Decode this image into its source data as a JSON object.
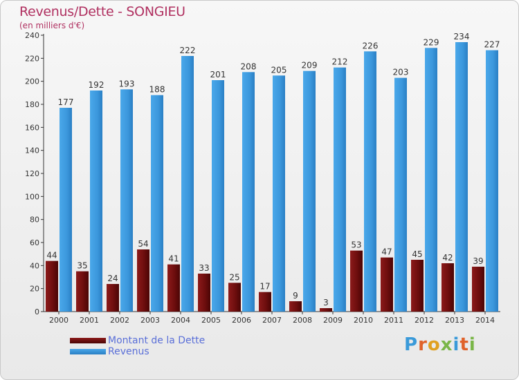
{
  "header": {
    "title": "Revenus/Dette - SONGIEU",
    "subtitle": "(en milliers d'€)"
  },
  "legend": {
    "debt_label": "Montant de la Dette",
    "revenue_label": "Revenus"
  },
  "logo": {
    "letters": [
      "P",
      "r",
      "o",
      "x",
      "i",
      "t",
      "i"
    ],
    "colors": [
      "#3a9ad9",
      "#e0622a",
      "#e0a020",
      "#7ab648",
      "#3a9ad9",
      "#e0622a",
      "#7ab648"
    ]
  },
  "colors": {
    "debt": "#7a1010",
    "revenue": "#3d9be0",
    "title": "#b03060",
    "axis_text": "#333333"
  },
  "chart_data": {
    "type": "bar",
    "title": "Revenus/Dette - SONGIEU",
    "subtitle": "(en milliers d'€)",
    "categories": [
      "2000",
      "2001",
      "2002",
      "2003",
      "2004",
      "2005",
      "2006",
      "2007",
      "2008",
      "2009",
      "2010",
      "2011",
      "2012",
      "2013",
      "2014"
    ],
    "series": [
      {
        "name": "Montant de la Dette",
        "values": [
          44,
          35,
          24,
          54,
          41,
          33,
          25,
          17,
          9,
          3,
          53,
          47,
          45,
          42,
          39
        ]
      },
      {
        "name": "Revenus",
        "values": [
          177,
          192,
          193,
          188,
          222,
          201,
          208,
          205,
          209,
          212,
          226,
          203,
          229,
          234,
          227
        ]
      }
    ],
    "ylim": [
      0,
      240
    ],
    "yticks": [
      0,
      20,
      40,
      60,
      80,
      100,
      120,
      140,
      160,
      180,
      200,
      220,
      240
    ],
    "grid": false,
    "legend_position": "bottom-left"
  }
}
